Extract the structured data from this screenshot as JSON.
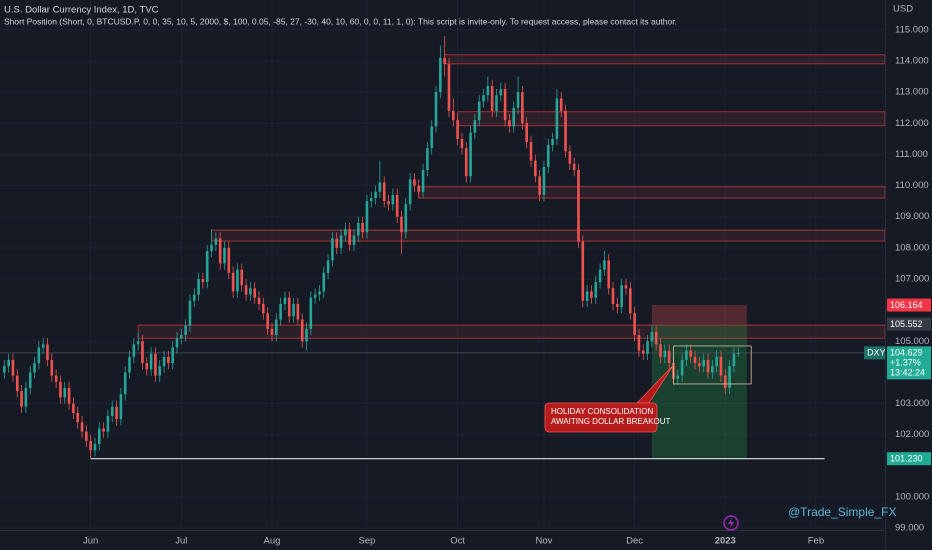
{
  "chart_data": {
    "type": "candlestick",
    "title": "U.S. Dollar Currency Index, 1D, TVC",
    "subtitle": "Short Position (Short, 0, BTCUSD.P, 0, 0, 35, 10, 5, 2000, $, 100, 0.05, -85, 27, -30, 40, 10, 60, 0, 0, 11, 1, 0): This script is invite-only. To request access, please contact its author.",
    "y_axis_label": "USD",
    "up_color": "#26a69a",
    "down_color": "#ef5350",
    "grid": true,
    "xlim": [
      -1,
      204
    ],
    "xticks": [
      {
        "value": 20,
        "label": "Jun"
      },
      {
        "value": 41,
        "label": "Jul"
      },
      {
        "value": 62,
        "label": "Aug"
      },
      {
        "value": 84,
        "label": "Sep"
      },
      {
        "value": 105,
        "label": "Oct"
      },
      {
        "value": 125,
        "label": "Nov"
      },
      {
        "value": 146,
        "label": "Dec"
      },
      {
        "value": 167,
        "label": "2023"
      },
      {
        "value": 188,
        "label": "Feb"
      }
    ],
    "ylim": [
      98.94,
      115.96
    ],
    "yticks": [
      {
        "value": 115,
        "label": "115.000"
      },
      {
        "value": 114,
        "label": "114.000"
      },
      {
        "value": 113,
        "label": "113.000"
      },
      {
        "value": 112,
        "label": "112.000"
      },
      {
        "value": 111,
        "label": "111.000"
      },
      {
        "value": 110,
        "label": "110.000"
      },
      {
        "value": 109,
        "label": "109.000"
      },
      {
        "value": 108,
        "label": "108.000"
      },
      {
        "value": 107,
        "label": "107.000"
      },
      {
        "value": 105,
        "label": "105.000"
      },
      {
        "value": 103,
        "label": "103.000"
      },
      {
        "value": 102,
        "label": "102.000"
      },
      {
        "value": 100,
        "label": "100.000"
      },
      {
        "value": 99,
        "label": "99.000"
      }
    ],
    "open": [
      104.0,
      104.2,
      104.4,
      103.9,
      103.4,
      102.9,
      103.5,
      104.0,
      104.3,
      104.8,
      104.9,
      104.4,
      103.9,
      103.7,
      103.2,
      103.5,
      103.0,
      102.7,
      102.4,
      102.1,
      101.8,
      101.5,
      101.7,
      102.2,
      102.1,
      102.6,
      102.9,
      102.5,
      103.3,
      104.0,
      104.5,
      104.9,
      105.0,
      104.3,
      104.1,
      104.6,
      103.9,
      104.2,
      104.5,
      104.3,
      104.8,
      105.1,
      105.2,
      105.5,
      106.3,
      106.5,
      107.0,
      106.9,
      107.9,
      108.1,
      108.3,
      107.5,
      108.0,
      107.2,
      106.6,
      107.3,
      106.8,
      106.5,
      106.7,
      106.4,
      106.2,
      105.9,
      105.4,
      105.2,
      105.7,
      106.2,
      106.4,
      105.8,
      106.2,
      105.7,
      105.0,
      105.4,
      106.4,
      106.5,
      106.6,
      107.2,
      107.6,
      108.3,
      108.0,
      108.4,
      108.6,
      108.1,
      108.4,
      108.8,
      108.5,
      109.5,
      109.6,
      109.8,
      110.1,
      109.5,
      109.4,
      109.7,
      109.0,
      108.5,
      109.4,
      110.2,
      110.0,
      109.8,
      110.5,
      111.2,
      111.9,
      113.0,
      114.1,
      113.9,
      112.4,
      112.1,
      111.5,
      111.2,
      110.3,
      111.7,
      112.1,
      112.7,
      112.9,
      113.2,
      112.4,
      112.9,
      113.1,
      112.1,
      111.9,
      112.5,
      113.0,
      112.0,
      111.4,
      110.8,
      110.3,
      109.7,
      110.6,
      111.3,
      111.5,
      112.8,
      112.4,
      111.1,
      110.7,
      110.5,
      108.2,
      106.3,
      106.6,
      106.4,
      106.9,
      107.3,
      107.6,
      106.7,
      106.2,
      106.1,
      106.8,
      106.7,
      105.9,
      105.2,
      104.7,
      104.6,
      105.0,
      105.3,
      104.9,
      104.5,
      104.7,
      104.3,
      103.8,
      103.9,
      104.4,
      104.7,
      104.5,
      104.3,
      104.2,
      104.4,
      104.0,
      104.2,
      104.5,
      103.9,
      103.5,
      104.2,
      104.6
    ],
    "high": [
      104.4,
      104.6,
      104.6,
      104.1,
      103.6,
      103.7,
      104.2,
      104.5,
      105.0,
      105.1,
      105.1,
      104.6,
      104.1,
      103.9,
      103.7,
      103.7,
      103.2,
      102.9,
      102.6,
      102.3,
      102.0,
      101.9,
      102.4,
      102.4,
      102.8,
      103.1,
      103.1,
      103.5,
      104.2,
      104.7,
      105.1,
      105.3,
      105.2,
      104.5,
      104.8,
      104.8,
      104.4,
      104.7,
      104.7,
      105.0,
      105.3,
      105.4,
      105.7,
      106.5,
      106.7,
      107.2,
      107.2,
      108.1,
      108.6,
      108.5,
      108.5,
      108.2,
      108.2,
      107.4,
      107.5,
      107.5,
      107.0,
      106.9,
      106.9,
      106.6,
      106.4,
      106.1,
      105.6,
      105.9,
      106.4,
      106.6,
      106.6,
      106.4,
      106.4,
      105.9,
      105.6,
      106.6,
      106.7,
      106.8,
      107.4,
      107.8,
      108.5,
      108.5,
      108.6,
      108.8,
      108.8,
      108.6,
      109.0,
      109.0,
      109.7,
      109.8,
      110.0,
      110.8,
      110.3,
      109.7,
      109.9,
      109.9,
      109.2,
      109.6,
      110.4,
      110.4,
      110.2,
      110.7,
      111.4,
      112.1,
      113.2,
      114.5,
      114.8,
      114.1,
      112.8,
      112.3,
      111.7,
      111.4,
      111.9,
      112.3,
      112.9,
      113.1,
      113.5,
      113.4,
      113.1,
      113.3,
      113.3,
      112.3,
      112.7,
      113.5,
      113.2,
      112.2,
      111.6,
      111.0,
      110.5,
      110.8,
      111.5,
      111.7,
      113.1,
      113.0,
      112.6,
      111.3,
      110.9,
      110.7,
      108.4,
      106.8,
      106.8,
      107.1,
      107.5,
      107.9,
      107.8,
      106.9,
      106.4,
      107.0,
      107.0,
      106.9,
      106.1,
      105.4,
      104.9,
      105.2,
      105.5,
      105.5,
      105.1,
      104.9,
      104.9,
      104.5,
      104.1,
      104.6,
      104.9,
      104.9,
      104.7,
      104.5,
      104.6,
      104.6,
      104.4,
      104.7,
      104.7,
      104.1,
      104.4,
      104.8,
      104.8
    ],
    "low": [
      103.8,
      104.0,
      103.7,
      103.2,
      102.7,
      102.7,
      103.3,
      103.8,
      104.1,
      104.6,
      104.2,
      103.7,
      103.5,
      103.0,
      103.0,
      102.8,
      102.5,
      102.2,
      101.9,
      101.6,
      101.23,
      101.3,
      101.5,
      101.9,
      101.9,
      102.4,
      102.3,
      102.3,
      103.1,
      103.8,
      104.3,
      104.7,
      104.1,
      103.9,
      103.9,
      103.7,
      103.7,
      104.0,
      104.1,
      104.1,
      104.6,
      104.9,
      105.0,
      105.3,
      106.1,
      106.3,
      106.7,
      106.7,
      107.7,
      107.9,
      107.3,
      107.3,
      107.0,
      106.4,
      106.4,
      106.6,
      106.3,
      106.3,
      106.2,
      106.0,
      105.7,
      105.2,
      105.0,
      105.0,
      105.5,
      106.0,
      105.6,
      105.6,
      105.5,
      104.8,
      104.7,
      105.2,
      106.2,
      106.3,
      106.4,
      107.0,
      107.4,
      107.8,
      107.8,
      108.2,
      107.9,
      107.9,
      108.2,
      108.3,
      108.3,
      109.3,
      109.4,
      109.6,
      109.3,
      109.2,
      109.2,
      108.8,
      107.8,
      108.3,
      109.2,
      109.8,
      109.6,
      109.6,
      110.3,
      111.0,
      111.7,
      112.8,
      113.5,
      112.2,
      111.9,
      111.3,
      111.0,
      110.1,
      110.1,
      111.5,
      111.9,
      112.5,
      112.7,
      112.2,
      112.2,
      112.7,
      111.9,
      111.7,
      111.7,
      112.3,
      111.8,
      111.2,
      110.6,
      110.1,
      109.5,
      109.5,
      110.4,
      111.1,
      111.3,
      112.2,
      110.9,
      110.5,
      110.3,
      108.0,
      106.1,
      106.1,
      106.2,
      106.2,
      106.7,
      107.1,
      106.5,
      106.0,
      105.9,
      105.9,
      106.5,
      105.7,
      105.0,
      104.5,
      104.4,
      104.4,
      104.8,
      104.7,
      104.3,
      104.3,
      104.1,
      103.6,
      103.6,
      103.7,
      104.2,
      104.3,
      104.1,
      104.0,
      104.0,
      103.8,
      103.8,
      104.0,
      103.7,
      103.3,
      103.3,
      104.0,
      104.5
    ],
    "close": [
      104.2,
      104.4,
      103.9,
      103.4,
      102.9,
      103.5,
      104.0,
      104.3,
      104.8,
      104.9,
      104.4,
      103.9,
      103.7,
      103.2,
      103.5,
      103.0,
      102.7,
      102.4,
      102.1,
      101.8,
      101.5,
      101.7,
      102.2,
      102.1,
      102.6,
      102.9,
      102.5,
      103.3,
      104.0,
      104.5,
      104.9,
      105.0,
      104.3,
      104.1,
      104.6,
      103.9,
      104.2,
      104.5,
      104.3,
      104.8,
      105.1,
      105.2,
      105.5,
      106.3,
      106.5,
      107.0,
      106.9,
      107.9,
      108.1,
      108.3,
      107.5,
      108.0,
      107.2,
      106.6,
      107.3,
      106.8,
      106.5,
      106.7,
      106.4,
      106.2,
      105.9,
      105.4,
      105.2,
      105.7,
      106.2,
      106.4,
      105.8,
      106.2,
      105.7,
      105.0,
      105.4,
      106.4,
      106.5,
      106.6,
      107.2,
      107.6,
      108.3,
      108.0,
      108.4,
      108.6,
      108.1,
      108.4,
      108.8,
      108.5,
      109.5,
      109.6,
      109.8,
      110.1,
      109.5,
      109.4,
      109.7,
      109.0,
      108.5,
      109.4,
      110.2,
      110.0,
      109.8,
      110.5,
      111.2,
      111.9,
      113.0,
      114.1,
      113.9,
      112.4,
      112.1,
      111.5,
      111.2,
      110.3,
      111.7,
      112.1,
      112.7,
      112.9,
      113.2,
      112.4,
      112.9,
      113.1,
      112.1,
      111.9,
      112.5,
      113.0,
      112.0,
      111.4,
      110.8,
      110.3,
      109.7,
      110.6,
      111.3,
      111.5,
      112.8,
      112.4,
      111.1,
      110.7,
      110.5,
      108.2,
      106.3,
      106.6,
      106.4,
      106.9,
      107.3,
      107.6,
      106.7,
      106.2,
      106.1,
      106.8,
      106.7,
      105.9,
      105.2,
      104.7,
      104.6,
      105.0,
      105.3,
      104.9,
      104.5,
      104.7,
      104.3,
      103.8,
      103.9,
      104.4,
      104.7,
      104.5,
      104.3,
      104.2,
      104.4,
      104.0,
      104.2,
      104.5,
      103.9,
      103.5,
      104.2,
      104.6,
      104.629
    ],
    "zones": [
      {
        "x0": 102,
        "low": 113.91,
        "high": 114.2
      },
      {
        "x0": 105,
        "low": 111.92,
        "high": 112.37
      },
      {
        "x0": 96,
        "low": 109.6,
        "high": 109.96
      },
      {
        "x0": 48,
        "low": 108.22,
        "high": 108.57
      },
      {
        "x0": 31,
        "low": 105.1,
        "high": 105.52
      }
    ],
    "support": {
      "value": 101.23,
      "x0": 20,
      "x1": 190
    },
    "position": {
      "x0": 150,
      "x1": 172,
      "entry": 105.552,
      "stop": 106.164,
      "target": {
        "value": 101.23,
        "label": "101.230"
      }
    },
    "consolidation": {
      "x0": 155,
      "x1": 173,
      "low": 103.63,
      "high": 104.85
    },
    "annotation": [
      "HOLIDAY CONSOLIDATION",
      "AWAITING DOLLAR BREAKOUT"
    ],
    "last": {
      "symbol": "DXY",
      "price": 104.629,
      "change": "+1.37%",
      "countdown": "13:42:24"
    },
    "watermark": "@Trade_Simple_FX"
  }
}
